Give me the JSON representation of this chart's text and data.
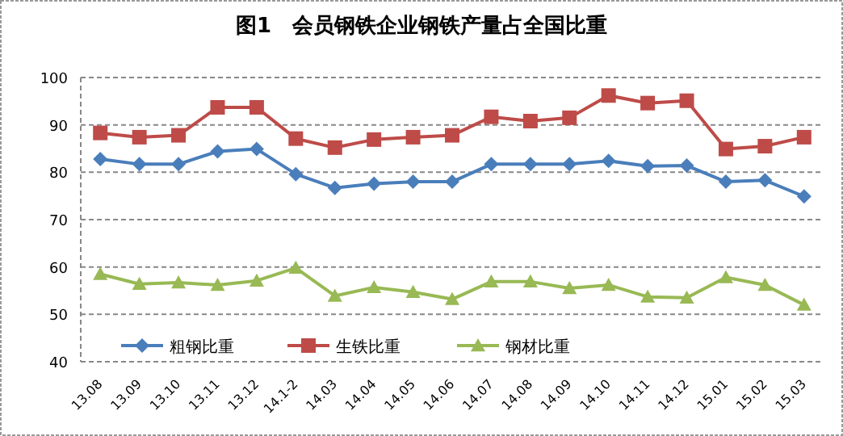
{
  "chart_data": {
    "type": "line",
    "title": "图1　会员钢铁企业钢铁产量占全国比重",
    "categories": [
      "13.08",
      "13.09",
      "13.10",
      "13.11",
      "13.12",
      "14.1-2",
      "14.03",
      "14.04",
      "14.05",
      "14.06",
      "14.07",
      "14.08",
      "14.09",
      "14.10",
      "14.11",
      "14.12",
      "15.01",
      "15.02",
      "15.03"
    ],
    "series": [
      {
        "name": "粗钢比重",
        "color": "#4a7ebb",
        "marker": "diamond",
        "values": [
          82.8,
          81.7,
          81.7,
          84.4,
          84.9,
          79.6,
          76.7,
          77.6,
          78.0,
          78.0,
          81.7,
          81.7,
          81.7,
          82.4,
          81.3,
          81.4,
          78.0,
          78.3,
          74.9
        ]
      },
      {
        "name": "生铁比重",
        "color": "#be4b48",
        "marker": "square",
        "values": [
          88.3,
          87.4,
          87.8,
          93.7,
          93.7,
          87.1,
          85.2,
          86.9,
          87.4,
          87.8,
          91.7,
          90.8,
          91.5,
          96.2,
          94.6,
          95.1,
          84.9,
          85.5,
          87.4
        ]
      },
      {
        "name": "钢材比重",
        "color": "#98b954",
        "marker": "triangle",
        "values": [
          58.5,
          56.4,
          56.7,
          56.2,
          57.1,
          59.8,
          53.9,
          55.7,
          54.7,
          53.2,
          56.9,
          56.9,
          55.5,
          56.2,
          53.7,
          53.5,
          57.8,
          56.2,
          52.0
        ]
      }
    ],
    "ylim": [
      40,
      100
    ],
    "yticks": [
      40,
      50,
      60,
      70,
      80,
      90,
      100
    ],
    "grid": "y",
    "legend": "bottom",
    "line_style": "solid"
  }
}
